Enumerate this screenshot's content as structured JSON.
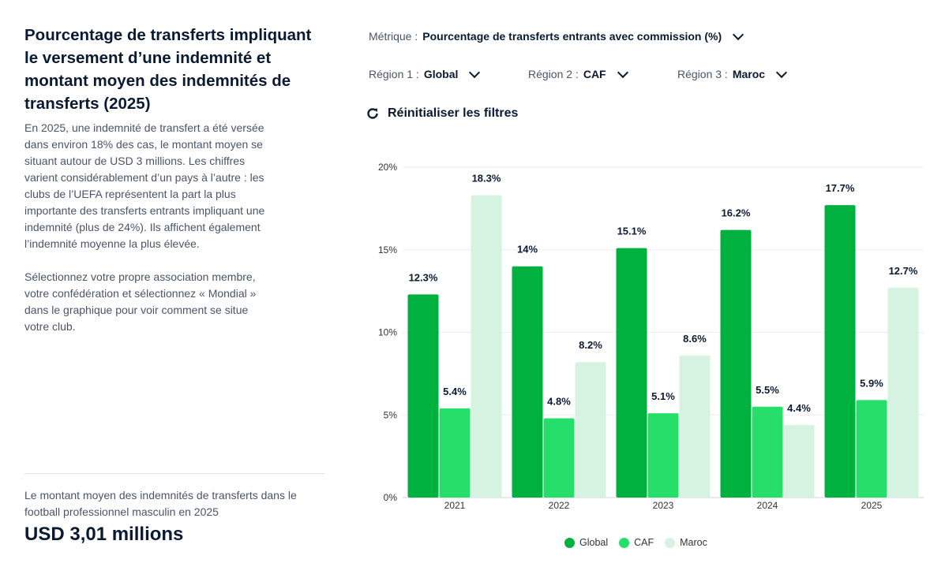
{
  "title": "Pourcentage de transferts impliquant le versement d’une indemnité et montant moyen des indemnités de transferts (2025)",
  "description": [
    "En 2025, une indemnité de transfert a été versée dans environ 18% des cas, le montant moyen se situant autour de USD 3 millions. Les chiffres varient considérablement d’un pays à l’autre : les clubs de l’UEFA représentent la part la plus importante des transferts entrants impliquant une indemnité (plus de 24%). Ils affichent également l’indemnité moyenne la plus élevée.",
    "Sélectionnez votre propre association membre, votre confédération et sélectionnez « Mondial » dans le graphique pour voir comment se situe votre club."
  ],
  "kpi": {
    "label": "Le montant moyen des indemnités de transferts dans le football professionnel masculin en 2025",
    "value": "USD 3,01 millions"
  },
  "filters": {
    "metric": {
      "label": "Métrique :",
      "value": "Pourcentage de transferts entrants avec commission (%)"
    },
    "region1": {
      "label": "Région 1 :",
      "value": "Global"
    },
    "region2": {
      "label": "Région 2 :",
      "value": "CAF"
    },
    "region3": {
      "label": "Région 3 :",
      "value": "Maroc"
    },
    "reset_label": "Réinitialiser les filtres"
  },
  "chart_data": {
    "type": "bar",
    "categories": [
      "2021",
      "2022",
      "2023",
      "2024",
      "2025"
    ],
    "series": [
      {
        "name": "Global",
        "color": "#00b140",
        "values": [
          12.3,
          14,
          15.1,
          16.2,
          17.7
        ],
        "labels": [
          "12.3%",
          "14%",
          "15.1%",
          "16.2%",
          "17.7%"
        ]
      },
      {
        "name": "CAF",
        "color": "#26de6a",
        "values": [
          5.4,
          4.8,
          5.1,
          5.5,
          5.9
        ],
        "labels": [
          "5.4%",
          "4.8%",
          "5.1%",
          "5.5%",
          "5.9%"
        ]
      },
      {
        "name": "Maroc",
        "color": "#d6f2e0",
        "values": [
          18.3,
          8.2,
          8.6,
          4.4,
          12.7
        ],
        "labels": [
          "18.3%",
          "8.2%",
          "8.6%",
          "4.4%",
          "12.7%"
        ]
      }
    ],
    "ylim": [
      0,
      20
    ],
    "yticks": [
      0,
      5,
      10,
      15,
      20
    ],
    "ytick_labels": [
      "0%",
      "5%",
      "10%",
      "15%",
      "20%"
    ],
    "grid": true,
    "legend": "bottom"
  }
}
